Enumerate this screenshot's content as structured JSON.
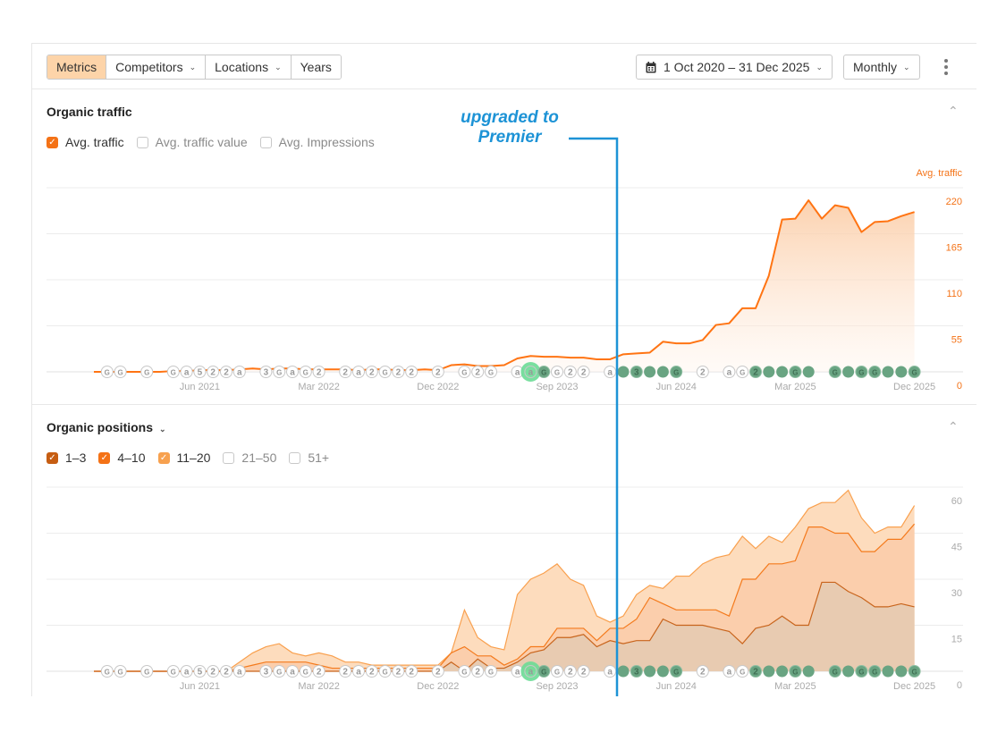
{
  "toolbar": {
    "segments": [
      {
        "label": "Metrics",
        "active": true
      },
      {
        "label": "Competitors",
        "dropdown": true
      },
      {
        "label": "Locations",
        "dropdown": true
      },
      {
        "label": "Years"
      }
    ],
    "date_range": "1 Oct 2020 – 31 Dec 2025",
    "interval": "Monthly",
    "more_icon": "kebab-icon"
  },
  "annotation": {
    "line1": "upgraded to",
    "line2": "Premier",
    "month": "Feb 2024",
    "color": "#1d93d6"
  },
  "traffic": {
    "title": "Organic traffic",
    "checkboxes": [
      {
        "label": "Avg. traffic",
        "checked": true,
        "color": "#f47216"
      },
      {
        "label": "Avg. traffic value",
        "checked": false
      },
      {
        "label": "Avg. Impressions",
        "checked": false
      }
    ]
  },
  "positions": {
    "title": "Organic positions",
    "checkboxes": [
      {
        "label": "1–3",
        "checked": true,
        "color": "#c65d12"
      },
      {
        "label": "4–10",
        "checked": true,
        "color": "#f47216"
      },
      {
        "label": "11–20",
        "checked": true,
        "color": "#f7a14f"
      },
      {
        "label": "21–50",
        "checked": false
      },
      {
        "label": "51+",
        "checked": false
      }
    ]
  },
  "chart_data": [
    {
      "type": "area",
      "title": "Organic traffic",
      "ylabel": "Avg. traffic",
      "x_start": "Oct 2020",
      "x_end": "Dec 2025",
      "x_step": "month",
      "xticks": [
        {
          "label": "Jun 2021",
          "i": 8
        },
        {
          "label": "Mar 2022",
          "i": 17
        },
        {
          "label": "Dec 2022",
          "i": 26
        },
        {
          "label": "Sep 2023",
          "i": 35
        },
        {
          "label": "Jun 2024",
          "i": 44
        },
        {
          "label": "Mar 2025",
          "i": 53
        },
        {
          "label": "Dec 2025",
          "i": 62
        }
      ],
      "yticks": [
        "0",
        "55",
        "110",
        "165",
        "220"
      ],
      "ylim": [
        0,
        220
      ],
      "grid": true,
      "series": [
        {
          "name": "Avg. traffic",
          "color": "#ff7413",
          "values": [
            0,
            0,
            0,
            0,
            0,
            0,
            1,
            1,
            2,
            2,
            2,
            3,
            4,
            3,
            4,
            4,
            3,
            3,
            3,
            3,
            2,
            3,
            3,
            2,
            2,
            3,
            2,
            8,
            9,
            7,
            7,
            8,
            16,
            19,
            18,
            18,
            17,
            17,
            15,
            15,
            21,
            22,
            23,
            36,
            34,
            34,
            38,
            56,
            58,
            76,
            76,
            115,
            182,
            183,
            205,
            183,
            199,
            196,
            167,
            179,
            180,
            186,
            191
          ]
        }
      ]
    },
    {
      "type": "area",
      "title": "Organic positions",
      "stacked": true,
      "x_start": "Oct 2020",
      "x_end": "Dec 2025",
      "x_step": "month",
      "xticks": [
        {
          "label": "Jun 2021",
          "i": 8
        },
        {
          "label": "Mar 2022",
          "i": 17
        },
        {
          "label": "Dec 2022",
          "i": 26
        },
        {
          "label": "Sep 2023",
          "i": 35
        },
        {
          "label": "Jun 2024",
          "i": 44
        },
        {
          "label": "Mar 2025",
          "i": 53
        },
        {
          "label": "Dec 2025",
          "i": 62
        }
      ],
      "yticks": [
        "0",
        "15",
        "30",
        "45",
        "60"
      ],
      "ylim": [
        0,
        60
      ],
      "grid": true,
      "series": [
        {
          "name": "1–3",
          "fill": "#e8cbb1",
          "stroke": "#c8641c",
          "values": [
            0,
            0,
            0,
            0,
            0,
            0,
            0,
            0,
            0,
            0,
            0,
            0,
            0,
            0,
            0,
            0,
            0,
            0,
            0,
            0,
            0,
            0,
            0,
            0,
            0,
            0,
            0,
            3,
            0,
            4,
            1,
            1,
            3,
            6,
            7,
            11,
            11,
            12,
            8,
            10,
            9,
            10,
            10,
            17,
            15,
            15,
            15,
            14,
            13,
            9,
            14,
            15,
            18,
            15,
            15,
            29,
            29,
            26,
            24,
            21,
            21,
            22,
            21
          ]
        },
        {
          "name": "4–10",
          "fill": "#fbceac",
          "stroke": "#f47a1c",
          "values": [
            0,
            0,
            0,
            0,
            0,
            0,
            0,
            0,
            0,
            0,
            0,
            1,
            2,
            3,
            3,
            3,
            3,
            2,
            1,
            1,
            1,
            1,
            1,
            1,
            1,
            1,
            1,
            3,
            8,
            1,
            4,
            1,
            1,
            2,
            1,
            3,
            3,
            2,
            2,
            4,
            5,
            7,
            14,
            5,
            5,
            5,
            5,
            6,
            5,
            21,
            16,
            20,
            17,
            21,
            32,
            18,
            16,
            19,
            15,
            18,
            22,
            21,
            27
          ]
        },
        {
          "name": "11–20",
          "fill": "#fddcbd",
          "stroke": "#f9a04e",
          "values": [
            0,
            0,
            0,
            0,
            0,
            0,
            0,
            0,
            0,
            0,
            0,
            2,
            4,
            5,
            6,
            3,
            2,
            4,
            4,
            2,
            2,
            1,
            1,
            1,
            1,
            1,
            1,
            0,
            12,
            6,
            3,
            5,
            21,
            22,
            24,
            21,
            16,
            14,
            8,
            2,
            4,
            8,
            4,
            5,
            11,
            11,
            15,
            17,
            20,
            14,
            10,
            9,
            7,
            11,
            6,
            8,
            10,
            14,
            11,
            6,
            4,
            4,
            6
          ]
        }
      ]
    }
  ],
  "markers": [
    {
      "i": 1,
      "t": "G"
    },
    {
      "i": 2,
      "t": "G"
    },
    {
      "i": 4,
      "t": "G"
    },
    {
      "i": 6,
      "t": "G"
    },
    {
      "i": 7,
      "t": "a"
    },
    {
      "i": 8,
      "t": "5"
    },
    {
      "i": 9,
      "t": "2"
    },
    {
      "i": 10,
      "t": "2"
    },
    {
      "i": 11,
      "t": "a"
    },
    {
      "i": 13,
      "t": "3"
    },
    {
      "i": 14,
      "t": "G"
    },
    {
      "i": 15,
      "t": "a"
    },
    {
      "i": 16,
      "t": "G"
    },
    {
      "i": 17,
      "t": "2"
    },
    {
      "i": 19,
      "t": "2"
    },
    {
      "i": 20,
      "t": "a"
    },
    {
      "i": 21,
      "t": "2"
    },
    {
      "i": 22,
      "t": "G"
    },
    {
      "i": 23,
      "t": "2"
    },
    {
      "i": 24,
      "t": "2"
    },
    {
      "i": 26,
      "t": "2"
    },
    {
      "i": 28,
      "t": "G"
    },
    {
      "i": 29,
      "t": "2"
    },
    {
      "i": 30,
      "t": "G"
    },
    {
      "i": 32,
      "t": "a"
    },
    {
      "i": 33,
      "t": "a",
      "highlight": true
    },
    {
      "i": 34,
      "t": "G",
      "green": true
    },
    {
      "i": 35,
      "t": "G"
    },
    {
      "i": 36,
      "t": "2"
    },
    {
      "i": 37,
      "t": "2"
    },
    {
      "i": 39,
      "t": "a"
    },
    {
      "i": 40,
      "t": "",
      "green": true
    },
    {
      "i": 41,
      "t": "3",
      "green": true
    },
    {
      "i": 42,
      "t": "",
      "green": true
    },
    {
      "i": 43,
      "t": "",
      "green": true
    },
    {
      "i": 44,
      "t": "G",
      "green": true
    },
    {
      "i": 46,
      "t": "2"
    },
    {
      "i": 48,
      "t": "a"
    },
    {
      "i": 49,
      "t": "G"
    },
    {
      "i": 50,
      "t": "2",
      "green": true
    },
    {
      "i": 51,
      "t": "",
      "green": true
    },
    {
      "i": 52,
      "t": "",
      "green": true
    },
    {
      "i": 53,
      "t": "G",
      "green": true
    },
    {
      "i": 54,
      "t": "",
      "green": true
    },
    {
      "i": 56,
      "t": "G",
      "green": true
    },
    {
      "i": 57,
      "t": "",
      "green": true
    },
    {
      "i": 58,
      "t": "G",
      "green": true
    },
    {
      "i": 59,
      "t": "G",
      "green": true
    },
    {
      "i": 60,
      "t": "",
      "green": true
    },
    {
      "i": 61,
      "t": "",
      "green": true
    },
    {
      "i": 62,
      "t": "G",
      "green": true
    }
  ]
}
